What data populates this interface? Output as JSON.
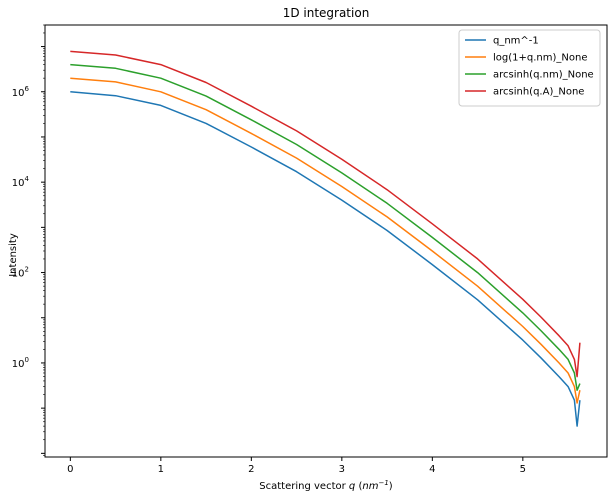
{
  "chart_data": {
    "type": "line",
    "title": "1D integration",
    "xlabel": "Scattering vector",
    "xlabel_var": "q",
    "xlabel_unit": "nm",
    "xlabel_unit_exp": "−1",
    "ylabel": "Intensity",
    "yscale": "log",
    "xlim": [
      -0.28,
      5.93
    ],
    "ylim": [
      0.0083,
      30000000
    ],
    "x_ticks": [
      0,
      1,
      2,
      3,
      4,
      5
    ],
    "y_ticks": [
      {
        "value": 1,
        "base": "10",
        "exp": "0"
      },
      {
        "value": 100,
        "base": "10",
        "exp": "2"
      },
      {
        "value": 10000,
        "base": "10",
        "exp": "4"
      },
      {
        "value": 1000000,
        "base": "10",
        "exp": "6"
      }
    ],
    "grid": false,
    "legend_position": "top-right",
    "series": [
      {
        "name": "q_nm^-1",
        "color": "#1f77b4",
        "points": [
          [
            0.0,
            1000000
          ],
          [
            0.5,
            820000
          ],
          [
            1.0,
            500000
          ],
          [
            1.5,
            200000
          ],
          [
            2.0,
            60000
          ],
          [
            2.5,
            17000
          ],
          [
            3.0,
            4000
          ],
          [
            3.5,
            850
          ],
          [
            4.0,
            150
          ],
          [
            4.5,
            25
          ],
          [
            5.0,
            3.2
          ],
          [
            5.2,
            1.3
          ],
          [
            5.4,
            0.5
          ],
          [
            5.5,
            0.3
          ],
          [
            5.57,
            0.15
          ],
          [
            5.6,
            0.04
          ],
          [
            5.63,
            0.15
          ]
        ]
      },
      {
        "name": "log(1+q.nm)_None",
        "color": "#ff7f0e",
        "points": [
          [
            0.0,
            2000000
          ],
          [
            0.5,
            1650000
          ],
          [
            1.0,
            1000000
          ],
          [
            1.5,
            400000
          ],
          [
            2.0,
            120000
          ],
          [
            2.5,
            34000
          ],
          [
            3.0,
            8000
          ],
          [
            3.5,
            1700
          ],
          [
            4.0,
            300
          ],
          [
            4.5,
            50
          ],
          [
            5.0,
            6.4
          ],
          [
            5.2,
            2.6
          ],
          [
            5.4,
            1.0
          ],
          [
            5.5,
            0.6
          ],
          [
            5.57,
            0.3
          ],
          [
            5.6,
            0.13
          ],
          [
            5.63,
            0.25
          ]
        ]
      },
      {
        "name": "arcsinh(q.nm)_None",
        "color": "#2ca02c",
        "points": [
          [
            0.0,
            4000000
          ],
          [
            0.5,
            3300000
          ],
          [
            1.0,
            2000000
          ],
          [
            1.5,
            800000
          ],
          [
            2.0,
            240000
          ],
          [
            2.5,
            68000
          ],
          [
            3.0,
            16000
          ],
          [
            3.5,
            3400
          ],
          [
            4.0,
            600
          ],
          [
            4.5,
            100
          ],
          [
            5.0,
            12.8
          ],
          [
            5.2,
            5.2
          ],
          [
            5.4,
            2.0
          ],
          [
            5.5,
            1.2
          ],
          [
            5.57,
            0.6
          ],
          [
            5.6,
            0.25
          ],
          [
            5.63,
            0.35
          ]
        ]
      },
      {
        "name": "arcsinh(q.A)_None",
        "color": "#d62728",
        "points": [
          [
            0.0,
            7800000
          ],
          [
            0.5,
            6500000
          ],
          [
            1.0,
            4000000
          ],
          [
            1.5,
            1600000
          ],
          [
            2.0,
            480000
          ],
          [
            2.5,
            136000
          ],
          [
            3.0,
            32000
          ],
          [
            3.5,
            6800
          ],
          [
            4.0,
            1200
          ],
          [
            4.5,
            200
          ],
          [
            5.0,
            25.6
          ],
          [
            5.2,
            10.4
          ],
          [
            5.4,
            4.0
          ],
          [
            5.5,
            2.4
          ],
          [
            5.57,
            1.2
          ],
          [
            5.6,
            0.5
          ],
          [
            5.63,
            2.8
          ]
        ]
      }
    ]
  }
}
